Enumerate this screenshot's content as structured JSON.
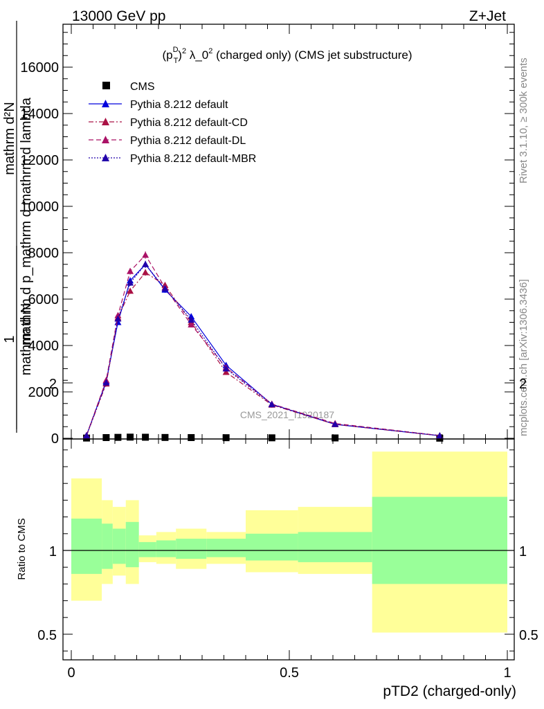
{
  "header": {
    "left": "13000 GeV pp",
    "right": "Z+Jet"
  },
  "side_labels": {
    "rivet": "Rivet 3.1.10, ≥ 300k events",
    "mcplots": "mcplots.cern.ch [arXiv:1306.3436]"
  },
  "watermark": "CMS_2021_I1920187",
  "chart_data": [
    {
      "type": "line",
      "title_parts": {
        "pre": "(p",
        "sub": "T",
        "sup": "D",
        "post": ")",
        "sup2": "2",
        "mid": " λ_0",
        "sup3": "2",
        "tail": " (charged only) (CMS jet substructure)"
      },
      "ylabel": {
        "frac1_num": "1",
        "frac1_den": "mathrm d N",
        "frac2_num": "mathrm d²N",
        "frac2_den": "mathrm d p_mathrm d mathrm d lambda"
      },
      "xlim": [
        0,
        1
      ],
      "ylim": [
        0,
        18000
      ],
      "yticks": [
        0,
        2000,
        4000,
        6000,
        8000,
        10000,
        12000,
        14000,
        16000
      ],
      "ytick_labels": [
        "0",
        "2000",
        "4000",
        "6000",
        "8000",
        "10000",
        "12000",
        "14000",
        "16000"
      ],
      "x": [
        0.035,
        0.08,
        0.107,
        0.135,
        0.17,
        0.215,
        0.275,
        0.355,
        0.46,
        0.605,
        0.845
      ],
      "series": [
        {
          "name": "CMS",
          "color": "#000000",
          "marker": "square",
          "y": [
            10,
            30,
            40,
            50,
            45,
            35,
            30,
            25,
            20,
            15,
            5
          ]
        },
        {
          "name": "Pythia 8.212 default",
          "color": "#0000dd",
          "marker": "triangle",
          "dash": "solid",
          "y": [
            120,
            2450,
            5000,
            6800,
            7500,
            6400,
            5250,
            3150,
            1470,
            600,
            110
          ]
        },
        {
          "name": "Pythia 8.212 default-CD",
          "color": "#aa1144",
          "marker": "triangle",
          "dash": "dashdot",
          "y": [
            110,
            2350,
            5200,
            6350,
            7150,
            6600,
            5000,
            2850,
            1440,
            600,
            110
          ]
        },
        {
          "name": "Pythia 8.212 default-DL",
          "color": "#aa1166",
          "marker": "triangle",
          "dash": "dash",
          "y": [
            130,
            2500,
            5300,
            7200,
            7900,
            6500,
            4900,
            3050,
            1480,
            640,
            120
          ]
        },
        {
          "name": "Pythia 8.212 default-MBR",
          "color": "#2200aa",
          "marker": "triangle",
          "dash": "dot",
          "y": [
            115,
            2400,
            5150,
            6700,
            7500,
            6450,
            5100,
            3000,
            1460,
            610,
            115
          ]
        }
      ],
      "legend_position": "top-left"
    },
    {
      "type": "area",
      "ylabel": "Ratio to CMS",
      "xlabel": "pTD2 (charged-only)",
      "xlim": [
        0,
        1
      ],
      "ylim": [
        0.35,
        2.25
      ],
      "xticks": [
        0,
        0.5,
        1
      ],
      "xtick_labels": [
        "0",
        "0.5",
        "1"
      ],
      "yticks": [
        0.5,
        1,
        2
      ],
      "ytick_labels": [
        "0.5",
        "1",
        "2"
      ],
      "bins": [
        0,
        0.07,
        0.095,
        0.125,
        0.155,
        0.195,
        0.24,
        0.31,
        0.4,
        0.52,
        0.69,
        1.0
      ],
      "green_band": {
        "color": "#99ff99",
        "lo": [
          0.86,
          0.89,
          0.92,
          0.9,
          0.96,
          0.96,
          0.95,
          0.96,
          0.94,
          0.93,
          0.8
        ],
        "hi": [
          1.19,
          1.16,
          1.13,
          1.17,
          1.05,
          1.06,
          1.07,
          1.07,
          1.1,
          1.11,
          1.32
        ]
      },
      "yellow_band": {
        "color": "#ffff99",
        "lo": [
          0.7,
          0.8,
          0.85,
          0.8,
          0.93,
          0.92,
          0.89,
          0.92,
          0.87,
          0.86,
          0.51
        ],
        "hi": [
          1.43,
          1.3,
          1.26,
          1.3,
          1.09,
          1.11,
          1.13,
          1.11,
          1.24,
          1.26,
          1.59
        ]
      },
      "reference_line": 1
    }
  ]
}
